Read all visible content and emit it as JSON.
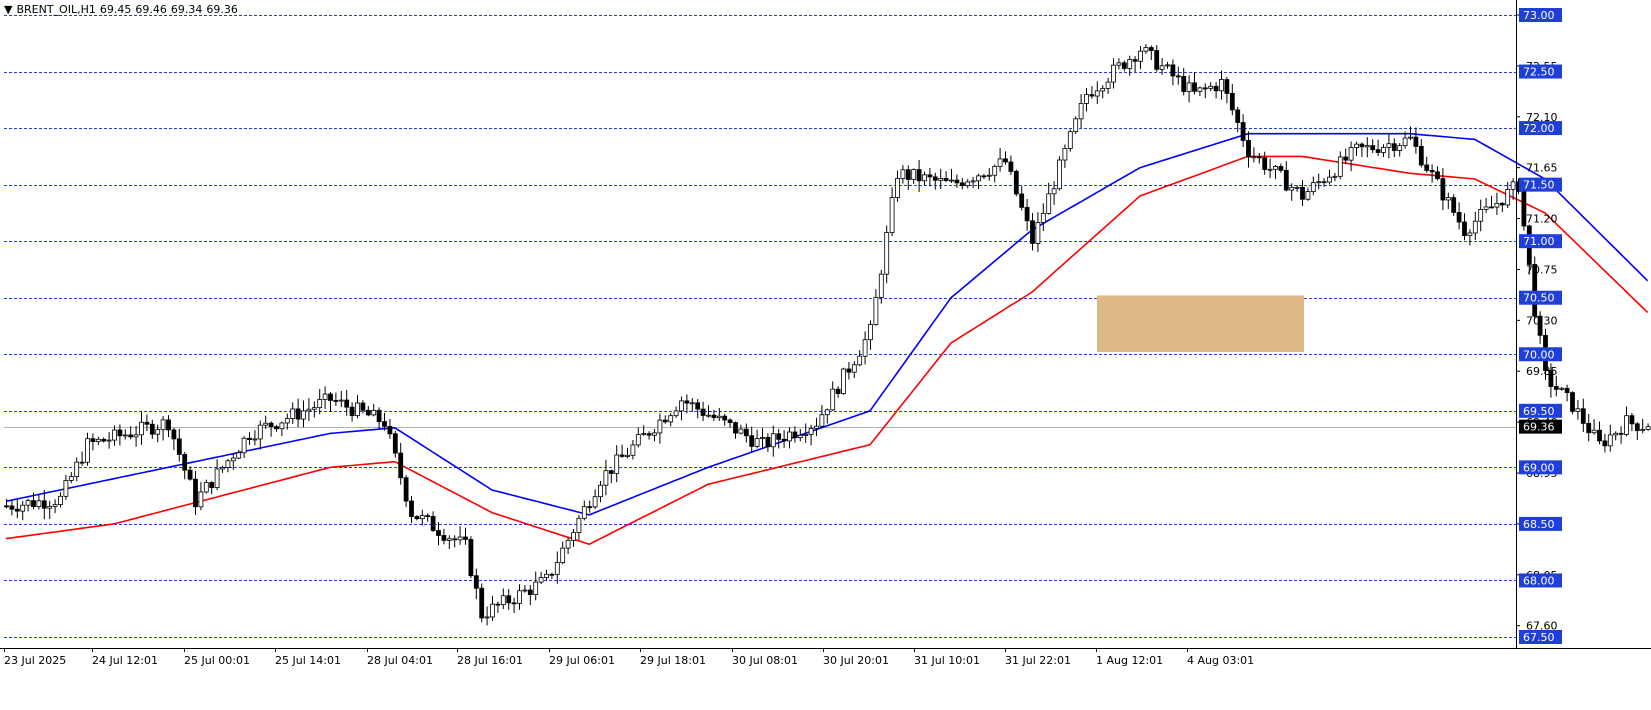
{
  "header": {
    "symbol": "BRENT_OIL,H1",
    "open": "69.45",
    "high": "69.46",
    "low": "69.34",
    "close": "69.36"
  },
  "colors": {
    "background": "#ffffff",
    "axis": "#000000",
    "level_line": "#1f3fd8",
    "ma_fast": "#0000ff",
    "ma_slow": "#ff0000",
    "zone": "#deb887",
    "label_box": "#1f3fd8",
    "price_box": "#000000"
  },
  "chart_data": {
    "type": "candlestick",
    "price_axis": {
      "ticks": [
        "73.00",
        "72.55",
        "72.10",
        "71.65",
        "71.20",
        "70.75",
        "70.30",
        "69.85",
        "69.40",
        "68.95",
        "68.50",
        "68.05",
        "67.60"
      ],
      "range": [
        67.5,
        73.1
      ]
    },
    "time_axis": {
      "labels": [
        "23 Jul 2025",
        "24 Jul 12:01",
        "25 Jul 00:01",
        "25 Jul 14:01",
        "28 Jul 04:01",
        "28 Jul 16:01",
        "29 Jul 06:01",
        "29 Jul 18:01",
        "30 Jul 08:01",
        "30 Jul 20:01",
        "31 Jul 10:01",
        "31 Jul 22:01",
        "1 Aug 12:01",
        "4 Aug 03:01"
      ]
    },
    "level_lines": [
      "73.00",
      "72.50",
      "72.00",
      "71.50",
      "71.00",
      "70.50",
      "70.00",
      "69.50",
      "69.00",
      "68.50",
      "68.00",
      "67.50"
    ],
    "current_price": "69.36",
    "zone": {
      "from": 70.02,
      "to": 70.52
    },
    "anchors": [
      [
        0,
        68.66
      ],
      [
        10,
        68.72
      ],
      [
        15,
        69.2
      ],
      [
        30,
        69.4
      ],
      [
        35,
        68.7
      ],
      [
        45,
        69.3
      ],
      [
        60,
        69.6
      ],
      [
        70,
        69.4
      ],
      [
        75,
        68.6
      ],
      [
        85,
        68.3
      ],
      [
        88,
        67.7
      ],
      [
        100,
        68.0
      ],
      [
        110,
        68.9
      ],
      [
        125,
        69.6
      ],
      [
        140,
        69.2
      ],
      [
        150,
        69.4
      ],
      [
        160,
        70.2
      ],
      [
        165,
        71.6
      ],
      [
        175,
        71.5
      ],
      [
        185,
        71.7
      ],
      [
        190,
        71.0
      ],
      [
        200,
        72.3
      ],
      [
        210,
        72.7
      ],
      [
        220,
        72.3
      ],
      [
        225,
        72.4
      ],
      [
        230,
        71.8
      ],
      [
        240,
        71.4
      ],
      [
        250,
        71.8
      ],
      [
        260,
        71.9
      ],
      [
        270,
        71.1
      ],
      [
        280,
        71.5
      ],
      [
        283,
        70.4
      ],
      [
        285,
        69.8
      ],
      [
        290,
        69.55
      ],
      [
        295,
        69.2
      ],
      [
        300,
        69.4
      ],
      [
        304,
        69.36
      ]
    ],
    "ma_fast": [
      [
        0,
        68.7
      ],
      [
        30,
        69.0
      ],
      [
        60,
        69.3
      ],
      [
        72,
        69.35
      ],
      [
        90,
        68.8
      ],
      [
        108,
        68.58
      ],
      [
        130,
        69.0
      ],
      [
        160,
        69.5
      ],
      [
        175,
        70.5
      ],
      [
        190,
        71.1
      ],
      [
        210,
        71.65
      ],
      [
        230,
        71.95
      ],
      [
        240,
        71.95
      ],
      [
        260,
        71.95
      ],
      [
        272,
        71.9
      ],
      [
        285,
        71.55
      ],
      [
        304,
        70.65
      ]
    ],
    "ma_slow": [
      [
        0,
        68.37
      ],
      [
        20,
        68.5
      ],
      [
        60,
        69.0
      ],
      [
        72,
        69.05
      ],
      [
        90,
        68.6
      ],
      [
        108,
        68.32
      ],
      [
        130,
        68.85
      ],
      [
        160,
        69.2
      ],
      [
        175,
        70.1
      ],
      [
        190,
        70.55
      ],
      [
        210,
        71.4
      ],
      [
        230,
        71.75
      ],
      [
        240,
        71.75
      ],
      [
        260,
        71.6
      ],
      [
        272,
        71.55
      ],
      [
        285,
        71.25
      ],
      [
        304,
        70.37
      ]
    ]
  }
}
